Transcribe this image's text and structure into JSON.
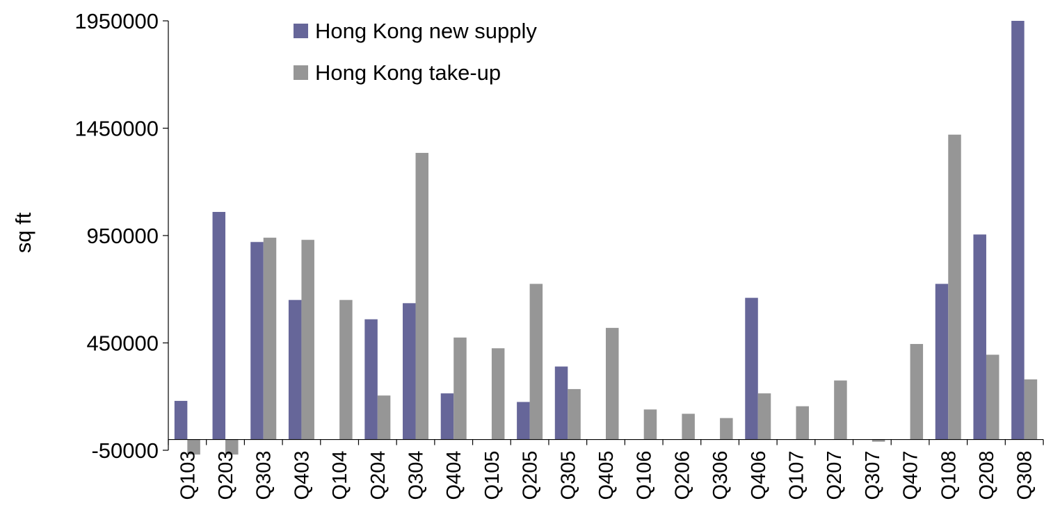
{
  "chart_data": {
    "type": "bar",
    "ylabel": "sq ft",
    "ylim": [
      -50000,
      1950000
    ],
    "yticks": [
      -50000,
      450000,
      950000,
      1450000,
      1950000
    ],
    "yticks_labels": [
      "-50000",
      "450000",
      "950000",
      "1450000",
      "1950000"
    ],
    "legend_position": "top-center",
    "grid": false,
    "categories": [
      "Q103",
      "Q203",
      "Q303",
      "Q403",
      "Q104",
      "Q204",
      "Q304",
      "Q404",
      "Q105",
      "Q205",
      "Q305",
      "Q405",
      "Q106",
      "Q206",
      "Q306",
      "Q406",
      "Q107",
      "Q207",
      "Q307",
      "Q407",
      "Q108",
      "Q208",
      "Q308"
    ],
    "series": [
      {
        "name": "Hong Kong new supply",
        "color": "#666699",
        "values": [
          180000,
          1060000,
          920000,
          650000,
          0,
          560000,
          635000,
          215000,
          0,
          175000,
          340000,
          0,
          0,
          0,
          0,
          660000,
          0,
          0,
          0,
          0,
          725000,
          955000,
          1950000
        ]
      },
      {
        "name": "Hong Kong take-up",
        "color": "#969696",
        "values": [
          -70000,
          -70000,
          940000,
          930000,
          650000,
          205000,
          1335000,
          475000,
          425000,
          725000,
          235000,
          520000,
          140000,
          120000,
          100000,
          215000,
          155000,
          275000,
          -10000,
          445000,
          1420000,
          395000,
          280000
        ]
      }
    ]
  }
}
